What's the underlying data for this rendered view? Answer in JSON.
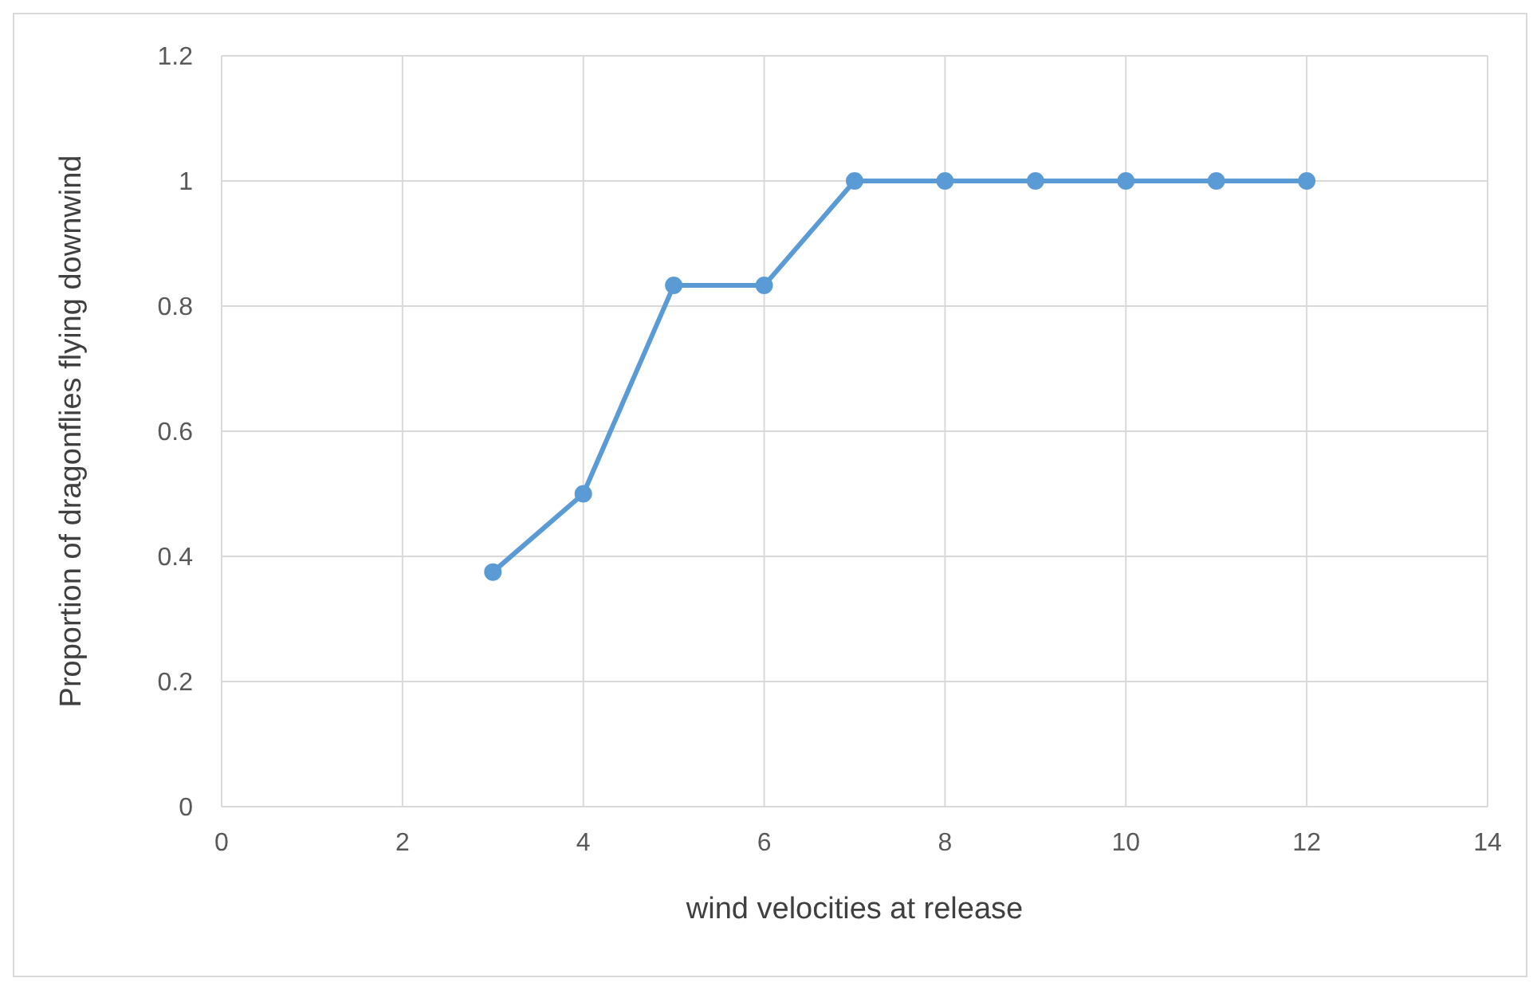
{
  "chart_data": {
    "type": "line",
    "xlabel": "wind velocities at release",
    "ylabel": "Proportion of dragonflies flying downwind",
    "x": [
      3,
      4,
      5,
      6,
      7,
      8,
      9,
      10,
      11,
      12
    ],
    "series": [
      {
        "color": "#5b9bd5",
        "values": [
          0.375,
          0.5,
          0.833,
          0.833,
          1,
          1,
          1,
          1,
          1,
          1
        ]
      }
    ],
    "xlim": [
      0,
      14
    ],
    "xticks": [
      0,
      2,
      4,
      6,
      8,
      10,
      12,
      14
    ],
    "ylim": [
      0,
      1.2
    ],
    "yticks": [
      0,
      0.2,
      0.4,
      0.6,
      0.8,
      1,
      1.2
    ],
    "grid": true,
    "marker": "circle",
    "line_style": "solid",
    "legend": false
  }
}
